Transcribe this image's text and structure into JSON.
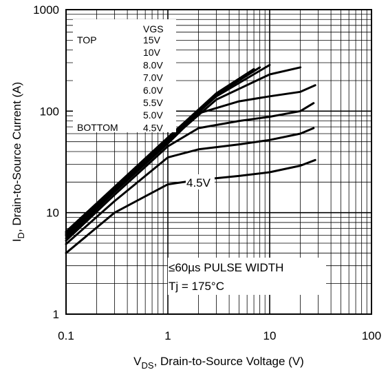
{
  "chart_data": {
    "type": "line",
    "x_scale": "log",
    "y_scale": "log",
    "xlim": [
      0.1,
      100
    ],
    "ylim": [
      1,
      1000
    ],
    "grid": true,
    "xlabel": {
      "prefix": "V",
      "sub": "DS",
      "rest": ", Drain-to-Source Voltage (V)"
    },
    "ylabel": {
      "prefix": "I",
      "sub": "D",
      "rest": ", Drain-to-Source Current (A)"
    },
    "x_ticks": [
      {
        "value": 0.1,
        "label": "0.1"
      },
      {
        "value": 1,
        "label": "1"
      },
      {
        "value": 10,
        "label": "10"
      },
      {
        "value": 100,
        "label": "100"
      }
    ],
    "y_ticks": [
      {
        "value": 1,
        "label": "1"
      },
      {
        "value": 10,
        "label": "10"
      },
      {
        "value": 100,
        "label": "100"
      },
      {
        "value": 1000,
        "label": "1000"
      }
    ],
    "legend": {
      "header": "VGS",
      "top_label": "TOP",
      "bottom_label": "BOTTOM",
      "entries": [
        "15V",
        "10V",
        "8.0V",
        "7.0V",
        "6.0V",
        "5.5V",
        "5.0V",
        "4.5V"
      ]
    },
    "annotations": {
      "curve_label": "4.5V",
      "pulse_width": "≤60µs PULSE WIDTH",
      "temperature": "Tj = 175°C"
    },
    "series": [
      {
        "name": "15V",
        "points": [
          [
            0.1,
            6.5
          ],
          [
            0.3,
            18
          ],
          [
            1,
            55
          ],
          [
            3,
            150
          ],
          [
            7,
            260
          ]
        ]
      },
      {
        "name": "10V",
        "points": [
          [
            0.1,
            6.3
          ],
          [
            0.3,
            17.5
          ],
          [
            1,
            53
          ],
          [
            3,
            145
          ],
          [
            8,
            270
          ]
        ]
      },
      {
        "name": "8.0V",
        "points": [
          [
            0.1,
            6.1
          ],
          [
            0.3,
            17
          ],
          [
            1,
            52
          ],
          [
            3,
            140
          ],
          [
            10,
            285
          ]
        ]
      },
      {
        "name": "7.0V",
        "points": [
          [
            0.1,
            5.9
          ],
          [
            0.3,
            16.5
          ],
          [
            1,
            50
          ],
          [
            3,
            130
          ],
          [
            10,
            230
          ],
          [
            20,
            270
          ]
        ]
      },
      {
        "name": "6.0V",
        "points": [
          [
            0.1,
            5.6
          ],
          [
            0.3,
            16
          ],
          [
            1,
            48
          ],
          [
            2,
            95
          ],
          [
            5,
            125
          ],
          [
            10,
            140
          ],
          [
            20,
            155
          ],
          [
            28,
            180
          ]
        ]
      },
      {
        "name": "5.5V",
        "points": [
          [
            0.1,
            5.3
          ],
          [
            0.3,
            15
          ],
          [
            1,
            45
          ],
          [
            2,
            68
          ],
          [
            5,
            80
          ],
          [
            10,
            88
          ],
          [
            20,
            100
          ],
          [
            27,
            120
          ]
        ]
      },
      {
        "name": "5.0V",
        "points": [
          [
            0.1,
            4.9
          ],
          [
            0.3,
            13
          ],
          [
            1,
            35
          ],
          [
            2,
            42
          ],
          [
            5,
            47
          ],
          [
            10,
            52
          ],
          [
            20,
            60
          ],
          [
            27,
            68
          ]
        ]
      },
      {
        "name": "4.5V",
        "points": [
          [
            0.1,
            4.0
          ],
          [
            0.3,
            10
          ],
          [
            1,
            19
          ],
          [
            2,
            21
          ],
          [
            5,
            23
          ],
          [
            10,
            25
          ],
          [
            20,
            29
          ],
          [
            28,
            33
          ]
        ]
      }
    ]
  }
}
